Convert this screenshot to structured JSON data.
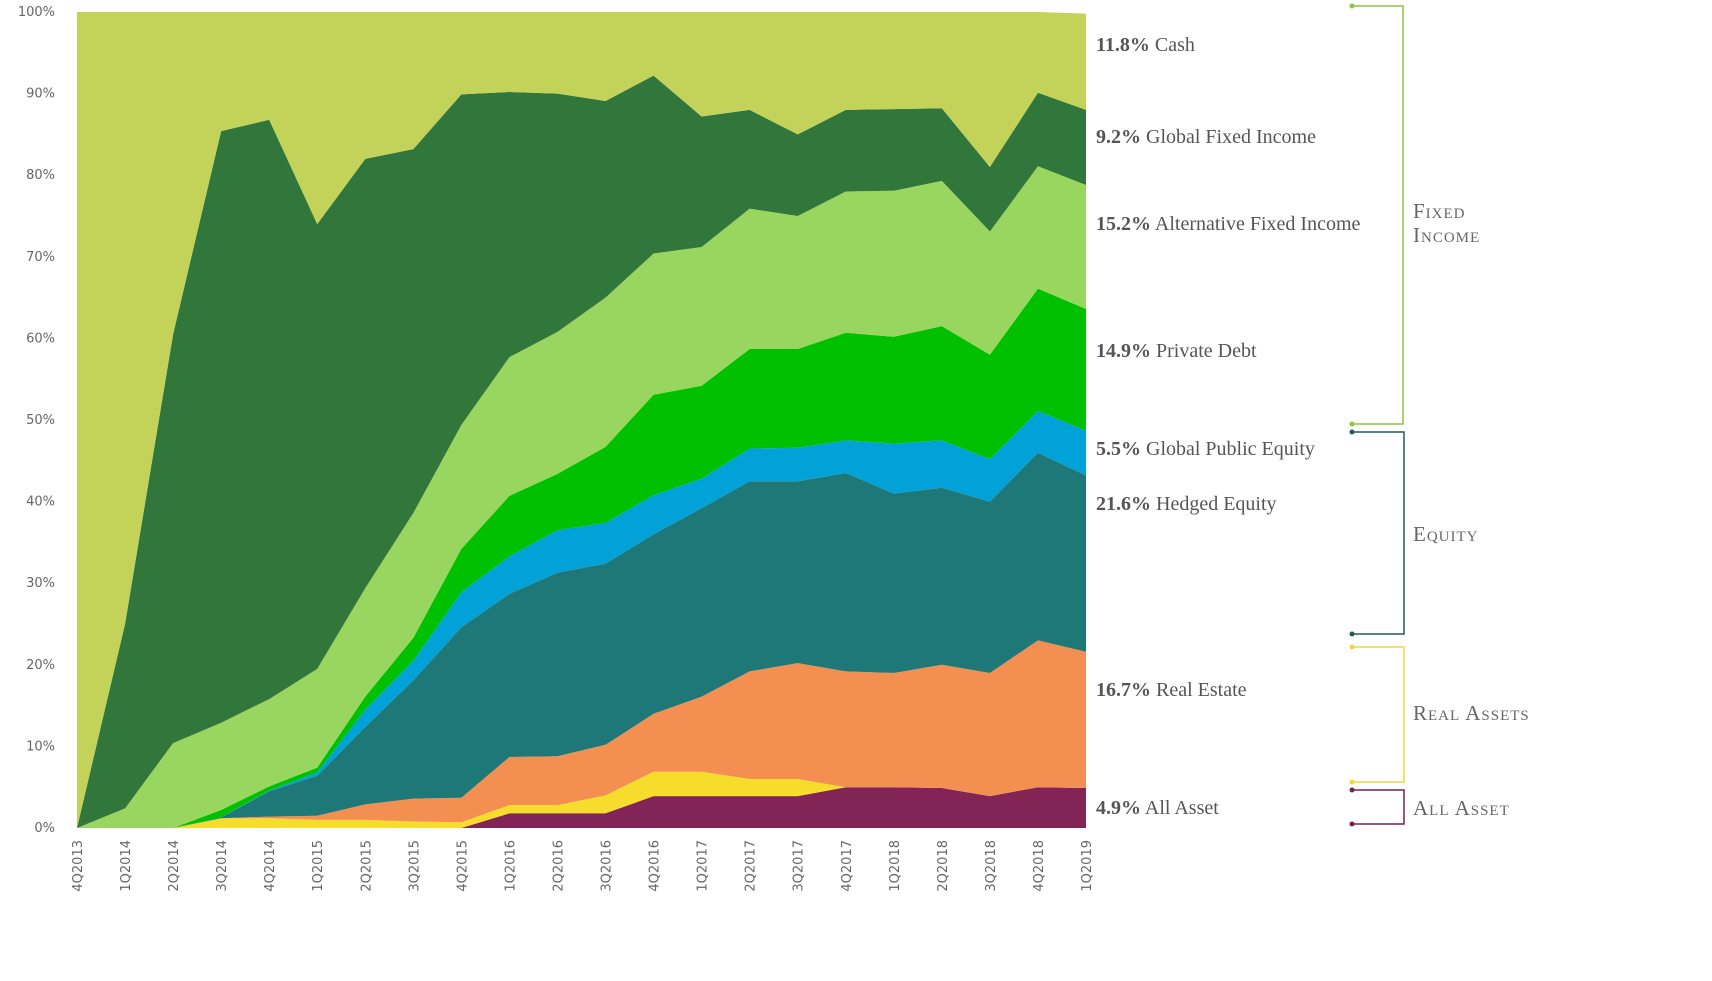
{
  "chart_data": {
    "type": "stacked_area",
    "categories": [
      "4Q2013",
      "1Q2014",
      "2Q2014",
      "3Q2014",
      "4Q2014",
      "1Q2015",
      "2Q2015",
      "3Q2015",
      "4Q2015",
      "1Q2016",
      "2Q2016",
      "3Q2016",
      "4Q2016",
      "1Q2017",
      "2Q2017",
      "3Q2017",
      "4Q2017",
      "1Q2018",
      "2Q2018",
      "3Q2018",
      "4Q2018",
      "1Q2019"
    ],
    "ylim": [
      0,
      100
    ],
    "yticks": [
      {
        "value": 0,
        "label": "0%"
      },
      {
        "value": 10,
        "label": "10%"
      },
      {
        "value": 20,
        "label": "20%"
      },
      {
        "value": 30,
        "label": "30%"
      },
      {
        "value": 40,
        "label": "40%"
      },
      {
        "value": 50,
        "label": "50%"
      },
      {
        "value": 60,
        "label": "60%"
      },
      {
        "value": 70,
        "label": "70%"
      },
      {
        "value": 80,
        "label": "80%"
      },
      {
        "value": 90,
        "label": "90%"
      },
      {
        "value": 100,
        "label": "100%"
      }
    ],
    "series": [
      {
        "name": "All Asset",
        "label": "4.9%",
        "color": "#822556",
        "values": [
          0,
          0,
          0,
          0,
          0,
          0,
          0,
          0,
          0,
          1.8,
          1.8,
          1.8,
          3.9,
          3.9,
          3.9,
          3.9,
          5.0,
          5.0,
          4.9,
          3.9,
          5.0,
          4.9
        ]
      },
      {
        "name": null,
        "color": "#f6dc2b",
        "values": [
          0,
          0,
          0,
          1.2,
          1.2,
          1.0,
          1.0,
          0.8,
          0.7,
          1.0,
          1.0,
          2.2,
          3.0,
          3.0,
          2.1,
          2.1,
          0,
          0,
          0,
          0,
          0,
          0
        ]
      },
      {
        "name": "Real Estate",
        "label": "16.7%",
        "color": "#f48f52",
        "values": [
          0,
          0,
          0,
          0,
          0.2,
          0.5,
          1.9,
          2.8,
          3.0,
          5.9,
          6.0,
          6.2,
          7.1,
          9.2,
          13.2,
          14.2,
          14.2,
          14.0,
          15.1,
          15.1,
          18.0,
          16.7
        ]
      },
      {
        "name": "Hedged Equity",
        "label": "21.6%",
        "color": "#1f7878",
        "values": [
          0,
          0,
          0,
          0.1,
          3.1,
          4.9,
          9.5,
          14.5,
          20.9,
          20.0,
          22.5,
          22.2,
          22.0,
          23.1,
          23.3,
          22.3,
          24.3,
          22.0,
          21.7,
          21.0,
          23.0,
          21.6
        ]
      },
      {
        "name": "Global Public Equity",
        "label": "5.5%",
        "color": "#00a2d8",
        "values": [
          0,
          0,
          0,
          0,
          0.1,
          0.4,
          2.1,
          2.4,
          4.3,
          4.6,
          5.2,
          5.0,
          4.8,
          3.6,
          4.0,
          4.1,
          4.0,
          6.1,
          5.8,
          5.2,
          5.1,
          5.5
        ]
      },
      {
        "name": "Private Debt",
        "label": "14.9%",
        "color": "#00c000",
        "values": [
          0,
          0,
          0,
          0.9,
          0.5,
          0.6,
          1.6,
          2.8,
          5.3,
          7.4,
          6.9,
          9.3,
          12.3,
          11.4,
          12.2,
          12.1,
          13.2,
          13.1,
          14.0,
          12.8,
          15.0,
          14.9
        ]
      },
      {
        "name": "Alternative Fixed Income",
        "label": "15.2%",
        "color": "#98d660",
        "values": [
          0,
          2.4,
          10.4,
          10.7,
          10.7,
          12.1,
          13.3,
          15.3,
          15.2,
          17.0,
          17.4,
          18.3,
          17.3,
          17.0,
          17.2,
          16.3,
          17.3,
          17.9,
          17.8,
          15.1,
          15.0,
          15.2
        ]
      },
      {
        "name": "Global Fixed Income",
        "label": "9.2%",
        "color": "#31763a",
        "values": [
          0,
          22.6,
          50.1,
          72.5,
          71.0,
          54.5,
          52.6,
          44.6,
          40.5,
          32.5,
          29.2,
          24.1,
          21.8,
          16.0,
          12.1,
          10.0,
          10.0,
          10.0,
          8.9,
          7.9,
          9.0,
          9.2
        ]
      },
      {
        "name": "Cash",
        "label": "11.8%",
        "color": "#c3d35a",
        "values": [
          100,
          75.0,
          39.5,
          14.6,
          13.2,
          26.0,
          18.0,
          16.8,
          10.1,
          9.8,
          10.0,
          10.9,
          7.8,
          12.8,
          12.0,
          15.0,
          12.0,
          11.9,
          11.8,
          19.0,
          9.9,
          11.8
        ]
      }
    ],
    "groups": [
      {
        "name": "Fixed Income",
        "color": "#8dc63f"
      },
      {
        "name": "Equity",
        "color": "#1e5a5a"
      },
      {
        "name": "Real Assets",
        "color": "#f2d83c"
      },
      {
        "name": "All Asset",
        "color": "#7a1f4e"
      }
    ]
  }
}
